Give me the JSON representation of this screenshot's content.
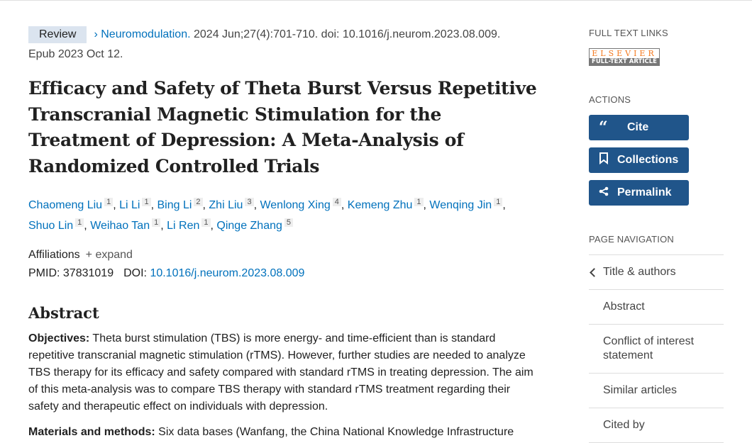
{
  "citation": {
    "type": "Review",
    "journal": "Neuromodulation.",
    "details": " 2024 Jun;27(4):701-710. doi: 10.1016/j.neurom.2023.08.009.",
    "epub": "Epub 2023 Oct 12."
  },
  "title": "Efficacy and Safety of Theta Burst Versus Repetitive Transcranial Magnetic Stimulation for the Treatment of Depression: A Meta-Analysis of Randomized Controlled Trials",
  "authors": [
    {
      "name": "Chaomeng Liu",
      "aff": "1"
    },
    {
      "name": "Li Li",
      "aff": "1"
    },
    {
      "name": "Bing Li",
      "aff": "2"
    },
    {
      "name": "Zhi Liu",
      "aff": "3"
    },
    {
      "name": "Wenlong Xing",
      "aff": "4"
    },
    {
      "name": "Kemeng Zhu",
      "aff": "1"
    },
    {
      "name": "Wenqing Jin",
      "aff": "1"
    },
    {
      "name": "Shuo Lin",
      "aff": "1"
    },
    {
      "name": "Weihao Tan",
      "aff": "1"
    },
    {
      "name": "Li Ren",
      "aff": "1"
    },
    {
      "name": "Qinge Zhang",
      "aff": "5"
    }
  ],
  "affiliations": {
    "label": "Affiliations",
    "expand": "expand"
  },
  "ids": {
    "pmid_label": "PMID:",
    "pmid": "37831019",
    "doi_label": "DOI:",
    "doi": "10.1016/j.neurom.2023.08.009"
  },
  "abstract": {
    "heading": "Abstract",
    "objectives_label": "Objectives:",
    "objectives": " Theta burst stimulation (TBS) is more energy- and time-efficient than is standard repetitive transcranial magnetic stimulation (rTMS). However, further studies are needed to analyze TBS therapy for its efficacy and safety compared with standard rTMS in treating depression. The aim of this meta-analysis was to compare TBS therapy with standard rTMS treatment regarding their safety and therapeutic effect on individuals with depression.",
    "methods_label": "Materials and methods:",
    "methods": " Six data bases (Wanfang, the China National Knowledge Infrastructure"
  },
  "sidebar": {
    "full_text_heading": "FULL TEXT LINKS",
    "elsevier_top": "ELSEVIER",
    "elsevier_bottom": "FULL-TEXT ARTICLE",
    "actions_heading": "ACTIONS",
    "cite": "Cite",
    "collections": "Collections",
    "permalink": "Permalink",
    "page_nav_heading": "PAGE NAVIGATION",
    "nav": [
      "Title & authors",
      "Abstract",
      "Conflict of interest statement",
      "Similar articles",
      "Cited by"
    ]
  },
  "colors": {
    "button": "#20558a",
    "link": "#0071bc",
    "badge": "#dbe4ef"
  }
}
